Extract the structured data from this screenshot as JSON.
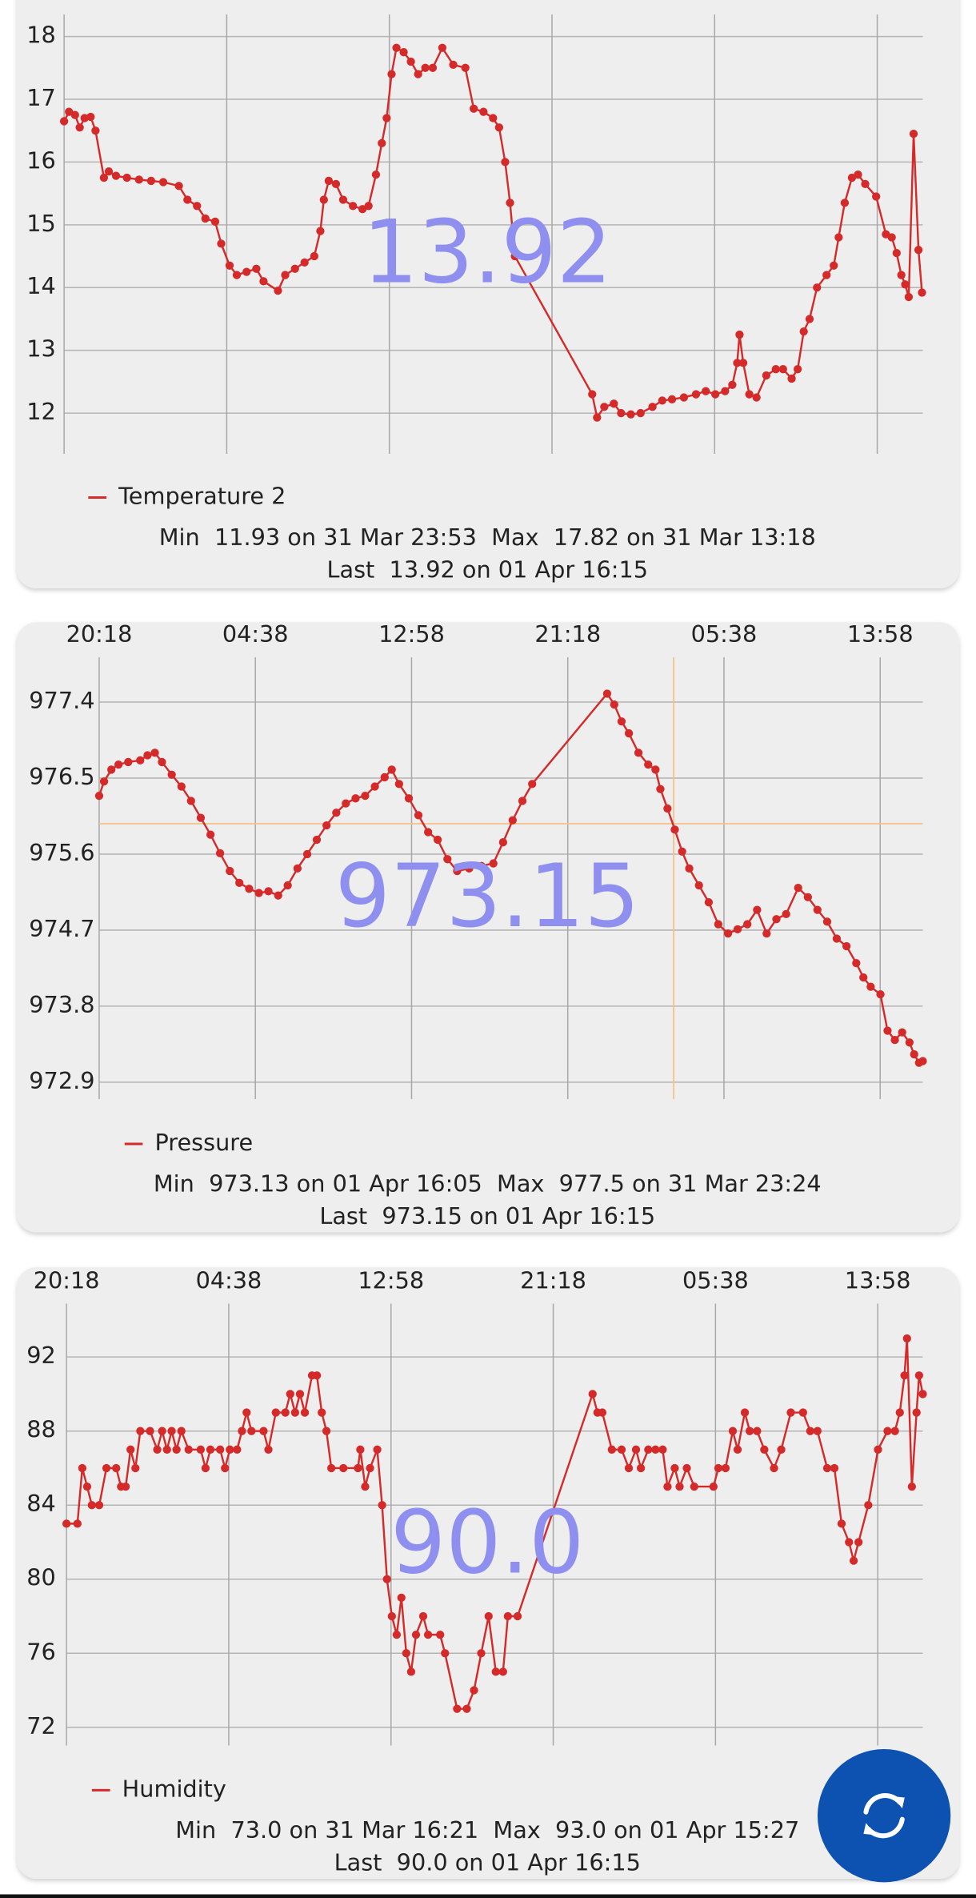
{
  "chart_data": [
    {
      "type": "line",
      "current_label": "13.92",
      "stats": {
        "min_label": "Min",
        "min": "11.93 on 31 Mar 23:53",
        "max_label": "Max",
        "max": "17.82 on 31 Mar 13:18",
        "last_label": "Last",
        "last": "13.92 on 01 Apr 16:15"
      },
      "x": [
        0,
        0.25,
        0.56,
        0.8,
        1.05,
        1.36,
        1.61,
        2.04,
        2.29,
        2.66,
        3.22,
        3.84,
        4.46,
        5.08,
        5.88,
        6.32,
        6.81,
        7.24,
        7.74,
        8.05,
        8.48,
        8.85,
        9.35,
        9.85,
        10.22,
        10.96,
        11.33,
        11.83,
        12.32,
        12.82,
        13.13,
        13.31,
        13.56,
        13.93,
        14.3,
        14.8,
        15.29,
        15.6,
        15.98,
        16.28,
        16.53,
        16.78,
        17.03,
        17.4,
        17.77,
        18.14,
        18.51,
        18.89,
        19.38,
        19.94,
        20.56,
        20.99,
        21.49,
        21.98,
        22.29,
        22.6,
        22.85,
        23.1,
        27.06,
        27.31,
        27.68,
        28.17,
        28.54,
        29.04,
        29.54,
        30.15,
        30.65,
        31.15,
        31.76,
        32.38,
        32.88,
        33.37,
        33.87,
        34.24,
        34.49,
        34.61,
        34.8,
        35.11,
        35.48,
        35.98,
        36.47,
        36.84,
        37.28,
        37.59,
        37.9,
        38.2,
        38.58,
        39.07,
        39.44,
        39.69,
        40.0,
        40.37,
        40.68,
        41.05,
        41.61,
        42.11,
        42.41,
        42.66,
        42.9,
        43.1,
        43.28,
        43.53,
        43.78,
        43.96
      ],
      "series": [
        {
          "name": "Temperature 2",
          "color": "#d42a2a",
          "values": [
            16.65,
            16.8,
            16.75,
            16.55,
            16.7,
            16.72,
            16.5,
            15.75,
            15.85,
            15.78,
            15.75,
            15.72,
            15.7,
            15.68,
            15.62,
            15.4,
            15.3,
            15.1,
            15.05,
            14.7,
            14.35,
            14.2,
            14.25,
            14.3,
            14.1,
            13.95,
            14.2,
            14.3,
            14.4,
            14.5,
            14.9,
            15.4,
            15.7,
            15.65,
            15.4,
            15.3,
            15.25,
            15.3,
            15.8,
            16.3,
            16.7,
            17.4,
            17.82,
            17.75,
            17.6,
            17.4,
            17.5,
            17.5,
            17.82,
            17.55,
            17.5,
            16.85,
            16.8,
            16.7,
            16.55,
            16.0,
            15.35,
            14.5,
            12.3,
            11.93,
            12.1,
            12.15,
            12.0,
            11.98,
            12.0,
            12.1,
            12.2,
            12.22,
            12.25,
            12.3,
            12.35,
            12.3,
            12.35,
            12.45,
            12.8,
            13.25,
            12.8,
            12.3,
            12.25,
            12.6,
            12.7,
            12.7,
            12.55,
            12.7,
            13.3,
            13.5,
            14.0,
            14.2,
            14.35,
            14.8,
            15.35,
            15.75,
            15.8,
            15.65,
            15.45,
            14.85,
            14.8,
            14.55,
            14.2,
            14.05,
            13.85,
            16.45,
            14.6,
            13.92
          ]
        }
      ],
      "xlim": [
        0,
        44
      ],
      "xticks": [
        0,
        8.333,
        16.667,
        25,
        33.333,
        41.667
      ],
      "ylim": [
        11.35,
        18.35
      ],
      "yticks": [
        12,
        13,
        14,
        15,
        16,
        17,
        18
      ],
      "grid": true
    },
    {
      "type": "line",
      "current_label": "973.15",
      "stats": {
        "min_label": "Min",
        "min": "973.13 on 01 Apr 16:05",
        "max_label": "Max",
        "max": "977.5 on 31 Mar 23:24",
        "last_label": "Last",
        "last": "973.15 on 01 Apr 16:15"
      },
      "x": [
        0,
        0.26,
        0.65,
        1.03,
        1.55,
        2.19,
        2.58,
        2.97,
        3.35,
        3.87,
        4.39,
        4.9,
        5.42,
        5.94,
        6.45,
        6.97,
        7.48,
        8.0,
        8.52,
        9.03,
        9.55,
        10.06,
        10.58,
        11.1,
        11.61,
        12.13,
        12.65,
        13.16,
        13.68,
        14.19,
        14.71,
        15.23,
        15.61,
        16.0,
        16.52,
        17.03,
        17.55,
        18.06,
        18.58,
        19.1,
        19.74,
        20.39,
        21.03,
        21.55,
        22.06,
        22.58,
        23.1,
        27.1,
        27.48,
        27.87,
        28.26,
        28.77,
        29.29,
        29.68,
        29.94,
        30.32,
        30.71,
        31.1,
        31.48,
        32.0,
        32.52,
        33.03,
        33.55,
        34.06,
        34.58,
        35.1,
        35.61,
        36.13,
        36.65,
        37.29,
        37.81,
        38.32,
        38.84,
        39.35,
        39.87,
        40.39,
        40.77,
        41.16,
        41.68,
        42.06,
        42.45,
        42.84,
        43.23,
        43.48,
        43.74,
        43.94
      ],
      "series": [
        {
          "name": "Pressure",
          "color": "#d42a2a",
          "values": [
            976.29,
            976.46,
            976.6,
            976.66,
            976.69,
            976.71,
            976.77,
            976.8,
            976.69,
            976.54,
            976.4,
            976.23,
            976.03,
            975.83,
            975.61,
            975.4,
            975.26,
            975.19,
            975.14,
            975.16,
            975.11,
            975.23,
            975.43,
            975.6,
            975.77,
            975.94,
            976.09,
            976.2,
            976.26,
            976.29,
            976.4,
            976.51,
            976.6,
            976.43,
            976.26,
            976.06,
            975.86,
            975.77,
            975.54,
            975.4,
            975.43,
            975.46,
            975.49,
            975.74,
            976.0,
            976.23,
            976.43,
            977.5,
            977.37,
            977.17,
            977.03,
            976.8,
            976.66,
            976.6,
            976.37,
            976.14,
            975.89,
            975.63,
            975.43,
            975.23,
            975.03,
            974.77,
            974.66,
            974.71,
            974.77,
            974.94,
            974.66,
            974.83,
            974.89,
            975.2,
            975.09,
            974.94,
            974.8,
            974.6,
            974.51,
            974.31,
            974.14,
            974.03,
            973.94,
            973.51,
            973.4,
            973.49,
            973.37,
            973.23,
            973.13,
            973.15
          ]
        }
      ],
      "xlim": [
        0,
        43.94
      ],
      "xticks": [
        {
          "value": 0,
          "label": "20:18"
        },
        {
          "value": 8.333,
          "label": "04:38"
        },
        {
          "value": 16.667,
          "label": "12:58"
        },
        {
          "value": 25,
          "label": "21:18"
        },
        {
          "value": 33.333,
          "label": "05:38"
        },
        {
          "value": 41.667,
          "label": "13:58"
        }
      ],
      "ylim": [
        972.7,
        977.93
      ],
      "yticks": [
        972.9,
        973.8,
        974.7,
        975.6,
        976.5,
        977.4
      ],
      "grid": true,
      "crosshair": {
        "x": 30.65,
        "y": 975.96,
        "color": "#f5c08a"
      }
    },
    {
      "type": "line",
      "current_label": "90.0",
      "stats": {
        "min_label": "Min",
        "min": "73.0 on 31 Mar 16:21",
        "max_label": "Max",
        "max": "93.0 on 01 Apr 15:27",
        "last_label": "Last",
        "last": "90.0 on 01 Apr 16:15"
      },
      "x": [
        0,
        0.56,
        0.81,
        1.06,
        1.3,
        1.68,
        2.05,
        2.55,
        2.8,
        3.04,
        3.29,
        3.54,
        3.79,
        4.29,
        4.66,
        4.91,
        5.16,
        5.4,
        5.65,
        5.9,
        6.27,
        6.89,
        7.14,
        7.39,
        7.89,
        8.14,
        8.39,
        8.76,
        9.01,
        9.25,
        9.5,
        10.12,
        10.37,
        10.75,
        11.24,
        11.49,
        11.74,
        11.99,
        12.24,
        12.61,
        12.86,
        13.11,
        13.35,
        13.6,
        14.22,
        14.97,
        15.09,
        15.34,
        15.59,
        15.96,
        16.21,
        16.46,
        16.71,
        16.96,
        17.2,
        17.45,
        17.7,
        17.95,
        18.32,
        18.57,
        19.19,
        19.44,
        20.06,
        20.56,
        20.93,
        21.3,
        21.68,
        22.05,
        22.42,
        22.67,
        23.17,
        27.02,
        27.27,
        27.52,
        28.01,
        28.51,
        28.88,
        29.25,
        29.5,
        29.88,
        30.25,
        30.62,
        30.87,
        31.24,
        31.49,
        31.86,
        32.24,
        33.23,
        33.48,
        33.85,
        34.22,
        34.47,
        34.84,
        35.09,
        35.47,
        35.84,
        36.34,
        36.71,
        37.2,
        37.83,
        38.2,
        38.57,
        39.07,
        39.44,
        39.81,
        40.19,
        40.43,
        40.68,
        41.18,
        41.68,
        42.17,
        42.55,
        42.8,
        43.04,
        43.17,
        43.42,
        43.66,
        43.79,
        43.98
      ],
      "series": [
        {
          "name": "Humidity",
          "color": "#d42a2a",
          "values": [
            83,
            83,
            86,
            85,
            84,
            84,
            86,
            86,
            85,
            85,
            87,
            86,
            88,
            88,
            87,
            88,
            87,
            88,
            87,
            88,
            87,
            87,
            86,
            87,
            87,
            86,
            87,
            87,
            88,
            89,
            88,
            88,
            87,
            89,
            89,
            90,
            89,
            90,
            89,
            91,
            91,
            89,
            88,
            86,
            86,
            86,
            87,
            85,
            86,
            87,
            84,
            80,
            78,
            77,
            79,
            76,
            75,
            77,
            78,
            77,
            77,
            76,
            73,
            73,
            74,
            76,
            78,
            75,
            75,
            78,
            78,
            90,
            89,
            89,
            87,
            87,
            86,
            87,
            86,
            87,
            87,
            87,
            85,
            86,
            85,
            86,
            85,
            85,
            86,
            86,
            88,
            87,
            89,
            88,
            88,
            87,
            86,
            87,
            89,
            89,
            88,
            88,
            86,
            86,
            83,
            82,
            81,
            82,
            84,
            87,
            88,
            88,
            89,
            91,
            93,
            85,
            89,
            91,
            90
          ]
        }
      ],
      "xlim": [
        0,
        43.98
      ],
      "xticks": [
        {
          "value": 0,
          "label": "20:18"
        },
        {
          "value": 8.333,
          "label": "04:38"
        },
        {
          "value": 16.667,
          "label": "12:58"
        },
        {
          "value": 25,
          "label": "21:18"
        },
        {
          "value": 33.333,
          "label": "05:38"
        },
        {
          "value": 41.667,
          "label": "13:58"
        }
      ],
      "ylim": [
        71.02,
        94.88
      ],
      "yticks": [
        72,
        76,
        80,
        84,
        88,
        92
      ],
      "grid": true
    }
  ]
}
